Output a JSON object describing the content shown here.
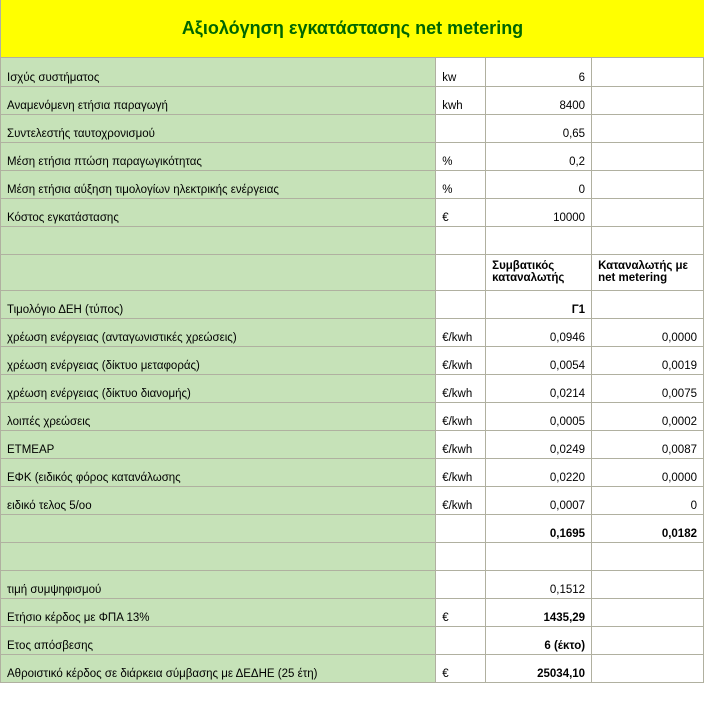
{
  "title": "Αξιολόγηση εγκατάστασης net metering",
  "colors": {
    "title_bg": "#ffff00",
    "title_fg": "#006600",
    "label_bg": "#c6e2b8",
    "border": "#b0b0a0"
  },
  "headers": {
    "conventional": "Συμβατικός καταναλωτής",
    "netmetering": "Καταναλωτής με net metering"
  },
  "rows": [
    {
      "label": "Ισχύς συστήματος",
      "unit": "kw",
      "v3": "6",
      "v4": ""
    },
    {
      "label": "Αναμενόμενη ετήσια παραγωγή",
      "unit": "kwh",
      "v3": "8400",
      "v4": ""
    },
    {
      "label": "Συντελεστής ταυτοχρονισμού",
      "unit": "",
      "v3": "0,65",
      "v4": ""
    },
    {
      "label": "Μέση ετήσια πτώση παραγωγικότητας",
      "unit": "%",
      "v3": "0,2",
      "v4": ""
    },
    {
      "label": "Μέση ετήσια αύξηση τιμολογίων ηλεκτρικής ενέργειας",
      "unit": "%",
      "v3": "0",
      "v4": ""
    },
    {
      "label": "Κόστος εγκατάστασης",
      "unit": "€",
      "v3": "10000",
      "v4": ""
    },
    {
      "blank": true
    },
    {
      "header": true
    },
    {
      "label": "Τιμολόγιο ΔΕΗ (τύπος)",
      "unit": "",
      "v3": "Γ1",
      "v4": "",
      "bold3": true
    },
    {
      "label": "χρέωση ενέργειας (ανταγωνιστικές χρεώσεις)",
      "unit": "€/kwh",
      "v3": "0,0946",
      "v4": "0,0000"
    },
    {
      "label": "χρέωση ενέργειας (δίκτυο μεταφοράς)",
      "unit": "€/kwh",
      "v3": "0,0054",
      "v4": "0,0019"
    },
    {
      "label": "χρέωση ενέργειας (δίκτυο διανομής)",
      "unit": "€/kwh",
      "v3": "0,0214",
      "v4": "0,0075"
    },
    {
      "label": "λοιπές χρεώσεις",
      "unit": "€/kwh",
      "v3": "0,0005",
      "v4": "0,0002"
    },
    {
      "label": "ΕΤΜΕΑΡ",
      "unit": "€/kwh",
      "v3": "0,0249",
      "v4": "0,0087"
    },
    {
      "label": "ΕΦΚ (ειδικός φόρος κατανάλωσης",
      "unit": "€/kwh",
      "v3": "0,0220",
      "v4": "0,0000"
    },
    {
      "label": "ειδικό τελος 5/οο",
      "unit": "€/kwh",
      "v3": "0,0007",
      "v4": "0"
    },
    {
      "label": "",
      "unit": "",
      "v3": "0,1695",
      "v4": "0,0182",
      "bold3": true,
      "bold4": true
    },
    {
      "blank": true
    },
    {
      "label": "τιμή συμψηφισμού",
      "unit": "",
      "v3": "0,1512",
      "v4": ""
    },
    {
      "label": "Ετήσιο κέρδος με ΦΠΑ 13%",
      "unit": "€",
      "v3": "1435,29",
      "v4": "",
      "bold3": true
    },
    {
      "label": "Ετος απόσβεσης",
      "unit": "",
      "v3": "6 (έκτο)",
      "v4": "",
      "bold3": true
    },
    {
      "label": "Αθροιστικό κέρδος σε διάρκεια σύμβασης με ΔΕΔΗΕ (25 έτη)",
      "unit": "€",
      "v3": "25034,10",
      "v4": "",
      "bold3": true
    }
  ]
}
